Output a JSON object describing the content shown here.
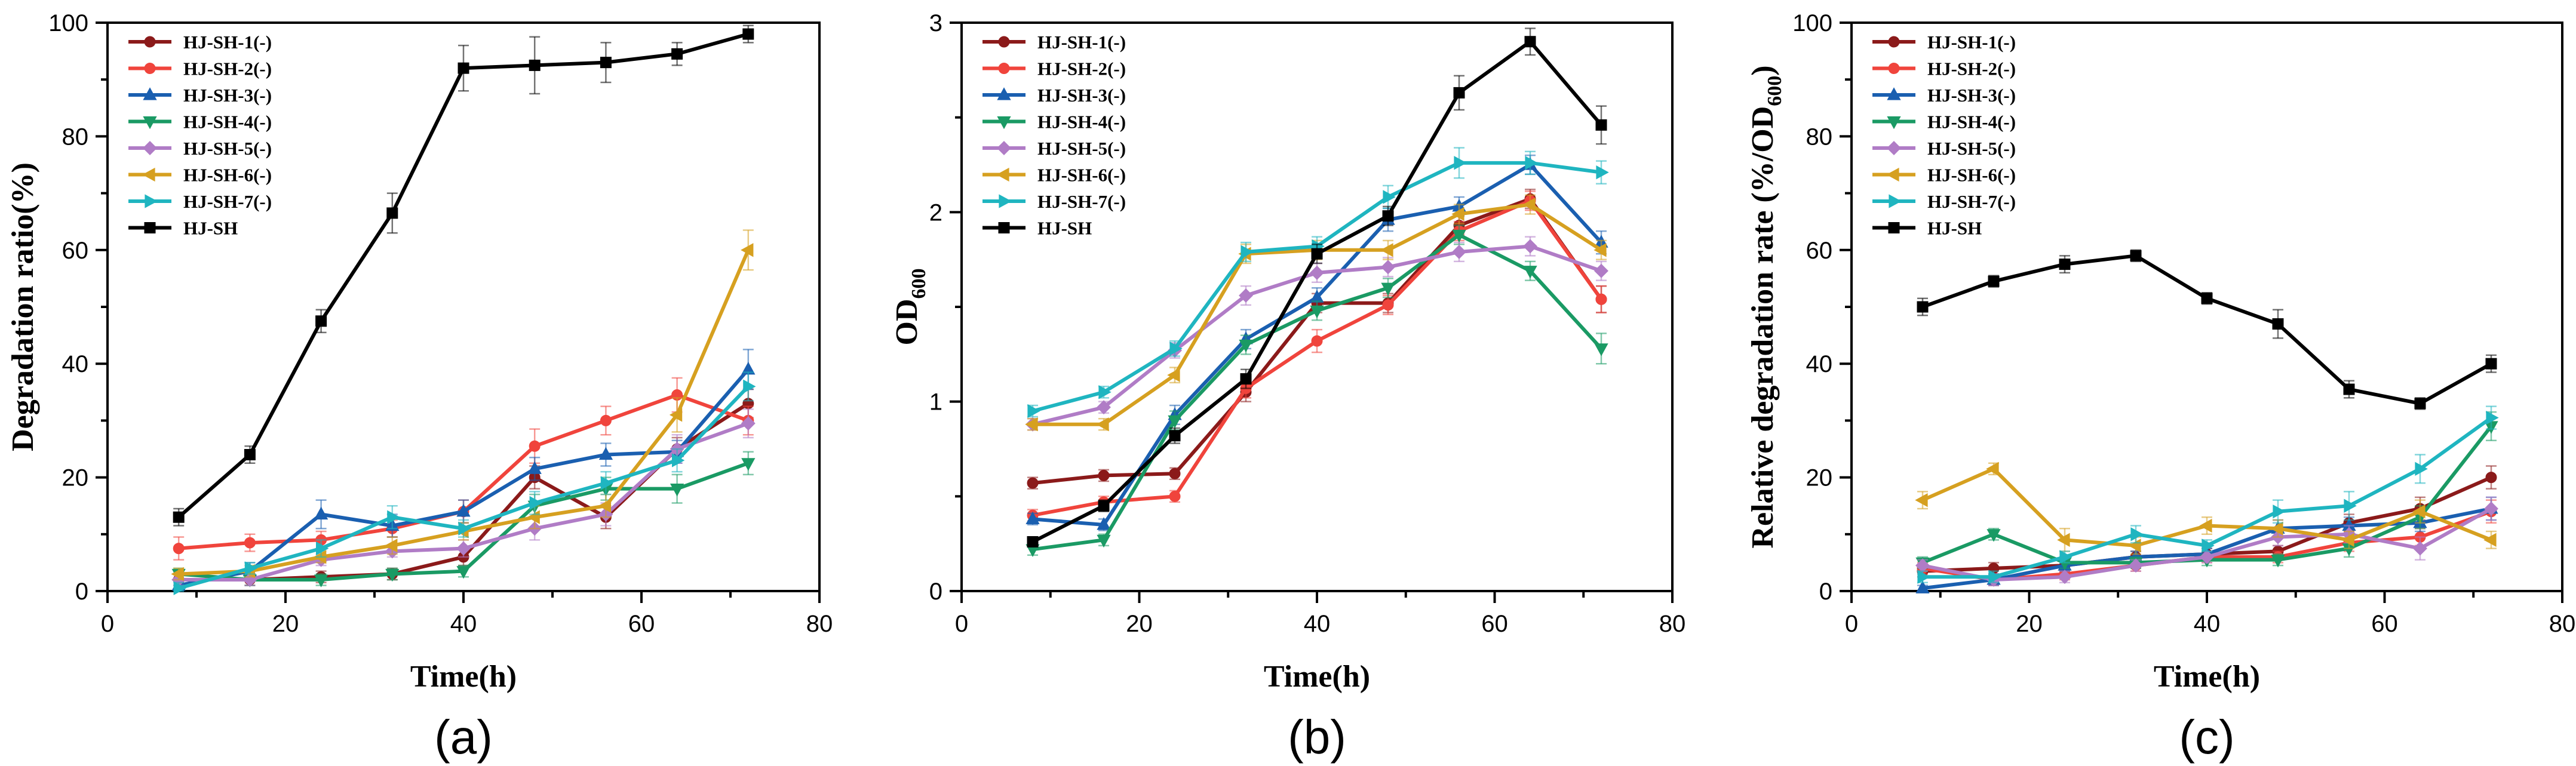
{
  "x_values": [
    8,
    16,
    24,
    32,
    40,
    48,
    56,
    64,
    72
  ],
  "chart_data": [
    {
      "type": "line",
      "panel_label": "(a)",
      "xlabel": "Time(h)",
      "ylabel": "Degradation ratio(%)",
      "xlim": [
        0,
        80
      ],
      "ylim": [
        0,
        100
      ],
      "xticks": [
        0,
        20,
        40,
        60,
        80
      ],
      "yticks": [
        0,
        20,
        40,
        60,
        80,
        100
      ],
      "legend_position": "top-left",
      "series": [
        {
          "name": "HJ-SH-1(-)",
          "color": "#8b1a1a",
          "marker": "circle",
          "values": [
            2,
            2,
            2.5,
            3,
            6,
            20,
            13,
            25,
            33
          ],
          "errors": [
            1,
            1,
            1,
            1,
            1.5,
            2,
            2,
            2,
            2.5
          ]
        },
        {
          "name": "HJ-SH-2(-)",
          "color": "#f0443c",
          "marker": "circle",
          "values": [
            7.5,
            8.5,
            9,
            11,
            14,
            25.5,
            30,
            34.5,
            30
          ],
          "errors": [
            2,
            1.5,
            1.5,
            1.5,
            2,
            3,
            2.5,
            3,
            2.5
          ]
        },
        {
          "name": "HJ-SH-3(-)",
          "color": "#1a5fb0",
          "marker": "triangle-up",
          "values": [
            1,
            3.5,
            13.5,
            11.5,
            14,
            21.5,
            24,
            24.5,
            39
          ],
          "errors": [
            1,
            1.5,
            2.5,
            2,
            2,
            2,
            2,
            2,
            3.5
          ]
        },
        {
          "name": "HJ-SH-4(-)",
          "color": "#1a9a64",
          "marker": "triangle-down",
          "values": [
            3,
            2,
            2,
            3,
            3.5,
            15,
            18,
            18,
            22.5
          ],
          "errors": [
            1,
            1,
            1,
            1,
            1,
            2,
            2,
            2.5,
            2
          ]
        },
        {
          "name": "HJ-SH-5(-)",
          "color": "#b07cc6",
          "marker": "diamond",
          "values": [
            2,
            2,
            5.5,
            7,
            7.5,
            11,
            13.5,
            25,
            29.5
          ],
          "errors": [
            1,
            1,
            1,
            1,
            1.5,
            2,
            2,
            2.5,
            2.5
          ]
        },
        {
          "name": "HJ-SH-6(-)",
          "color": "#d6a020",
          "marker": "triangle-left",
          "values": [
            3,
            3.5,
            6,
            8,
            10.5,
            13,
            15,
            31,
            60
          ],
          "errors": [
            1,
            1,
            1,
            1.5,
            1.5,
            2,
            2,
            3,
            3.5
          ]
        },
        {
          "name": "HJ-SH-7(-)",
          "color": "#1fb5c0",
          "marker": "triangle-right",
          "values": [
            0.5,
            4,
            7.5,
            13,
            11,
            15.5,
            19,
            23,
            36
          ],
          "errors": [
            1,
            1,
            1.5,
            2,
            1.5,
            2,
            2,
            2,
            2.5
          ]
        },
        {
          "name": "HJ-SH",
          "color": "#000000",
          "marker": "square",
          "values": [
            13,
            24,
            47.5,
            66.5,
            92,
            92.5,
            93,
            94.5,
            98
          ],
          "errors": [
            1.5,
            1.5,
            2,
            3.5,
            4,
            5,
            3.5,
            2,
            1.5
          ]
        }
      ]
    },
    {
      "type": "line",
      "panel_label": "(b)",
      "xlabel": "Time(h)",
      "ylabel": "OD",
      "ylabel_subscript": "600",
      "xlim": [
        0,
        80
      ],
      "ylim": [
        0,
        3
      ],
      "xticks": [
        0,
        20,
        40,
        60,
        80
      ],
      "yticks": [
        0,
        1,
        2,
        3
      ],
      "legend_position": "top-left",
      "series": [
        {
          "name": "HJ-SH-1(-)",
          "color": "#8b1a1a",
          "marker": "circle",
          "values": [
            0.57,
            0.61,
            0.62,
            1.05,
            1.52,
            1.52,
            1.93,
            2.07,
            1.54
          ],
          "errors": [
            0.03,
            0.03,
            0.03,
            0.05,
            0.05,
            0.05,
            0.05,
            0.05,
            0.07
          ]
        },
        {
          "name": "HJ-SH-2(-)",
          "color": "#f0443c",
          "marker": "circle",
          "values": [
            0.4,
            0.47,
            0.5,
            1.07,
            1.32,
            1.51,
            1.9,
            2.06,
            1.54
          ],
          "errors": [
            0.03,
            0.03,
            0.03,
            0.05,
            0.06,
            0.05,
            0.05,
            0.05,
            0.07
          ]
        },
        {
          "name": "HJ-SH-3(-)",
          "color": "#1a5fb0",
          "marker": "triangle-up",
          "values": [
            0.38,
            0.35,
            0.93,
            1.33,
            1.55,
            1.96,
            2.03,
            2.25,
            1.84
          ],
          "errors": [
            0.03,
            0.03,
            0.05,
            0.05,
            0.05,
            0.06,
            0.05,
            0.05,
            0.06
          ]
        },
        {
          "name": "HJ-SH-4(-)",
          "color": "#1a9a64",
          "marker": "triangle-down",
          "values": [
            0.22,
            0.27,
            0.9,
            1.3,
            1.48,
            1.6,
            1.88,
            1.69,
            1.28
          ],
          "errors": [
            0.03,
            0.03,
            0.05,
            0.05,
            0.05,
            0.05,
            0.05,
            0.05,
            0.08
          ]
        },
        {
          "name": "HJ-SH-5(-)",
          "color": "#b07cc6",
          "marker": "diamond",
          "values": [
            0.88,
            0.97,
            1.27,
            1.56,
            1.68,
            1.71,
            1.79,
            1.82,
            1.69
          ],
          "errors": [
            0.03,
            0.03,
            0.04,
            0.05,
            0.05,
            0.05,
            0.05,
            0.05,
            0.05
          ]
        },
        {
          "name": "HJ-SH-6(-)",
          "color": "#d6a020",
          "marker": "triangle-left",
          "values": [
            0.88,
            0.88,
            1.14,
            1.78,
            1.8,
            1.8,
            1.99,
            2.04,
            1.8
          ],
          "errors": [
            0.03,
            0.03,
            0.04,
            0.05,
            0.05,
            0.05,
            0.05,
            0.05,
            0.05
          ]
        },
        {
          "name": "HJ-SH-7(-)",
          "color": "#1fb5c0",
          "marker": "triangle-right",
          "values": [
            0.95,
            1.05,
            1.28,
            1.79,
            1.82,
            2.08,
            2.26,
            2.26,
            2.21
          ],
          "errors": [
            0.03,
            0.03,
            0.04,
            0.05,
            0.05,
            0.06,
            0.08,
            0.06,
            0.06
          ]
        },
        {
          "name": "HJ-SH",
          "color": "#000000",
          "marker": "square",
          "values": [
            0.26,
            0.45,
            0.82,
            1.12,
            1.78,
            1.98,
            2.63,
            2.9,
            2.46
          ],
          "errors": [
            0.02,
            0.03,
            0.04,
            0.05,
            0.05,
            0.05,
            0.09,
            0.07,
            0.1
          ]
        }
      ]
    },
    {
      "type": "line",
      "panel_label": "(c)",
      "xlabel": "Time(h)",
      "ylabel": "Relative degradation rate (%/OD",
      "ylabel_subscript": "600",
      "ylabel_suffix": ")",
      "xlim": [
        0,
        80
      ],
      "ylim": [
        0,
        100
      ],
      "xticks": [
        0,
        20,
        40,
        60,
        80
      ],
      "yticks": [
        0,
        20,
        40,
        60,
        80,
        100
      ],
      "legend_position": "top-left",
      "series": [
        {
          "name": "HJ-SH-1(-)",
          "color": "#8b1a1a",
          "marker": "circle",
          "values": [
            3.5,
            4,
            4.5,
            6,
            6.5,
            7,
            12,
            14.5,
            20
          ],
          "errors": [
            1,
            1,
            1,
            1,
            1,
            1,
            1.5,
            2,
            2
          ]
        },
        {
          "name": "HJ-SH-2(-)",
          "color": "#f0443c",
          "marker": "circle",
          "values": [
            4,
            2,
            3,
            4.5,
            6,
            6,
            8.5,
            9.5,
            14
          ],
          "errors": [
            1,
            1,
            1,
            1,
            1,
            1,
            1.5,
            1.5,
            2
          ]
        },
        {
          "name": "HJ-SH-3(-)",
          "color": "#1a5fb0",
          "marker": "triangle-up",
          "values": [
            0.5,
            2,
            4.5,
            6,
            6.5,
            11,
            11.5,
            12,
            14.5
          ],
          "errors": [
            0.5,
            1,
            1,
            1,
            1,
            1.5,
            1.5,
            1.5,
            2
          ]
        },
        {
          "name": "HJ-SH-4(-)",
          "color": "#1a9a64",
          "marker": "triangle-down",
          "values": [
            5,
            10,
            5,
            5,
            5.5,
            5.5,
            7.5,
            13,
            29
          ],
          "errors": [
            1,
            1,
            1,
            1,
            1,
            1,
            1.5,
            2,
            2.5
          ]
        },
        {
          "name": "HJ-SH-5(-)",
          "color": "#b07cc6",
          "marker": "diamond",
          "values": [
            4.5,
            2,
            2.5,
            4.5,
            6,
            9.5,
            10,
            7.5,
            14.5
          ],
          "errors": [
            1,
            1,
            1,
            1,
            1,
            1.5,
            1.5,
            2,
            2
          ]
        },
        {
          "name": "HJ-SH-6(-)",
          "color": "#d6a020",
          "marker": "triangle-left",
          "values": [
            16,
            21.5,
            9,
            8,
            11.5,
            11,
            9,
            14,
            9
          ],
          "errors": [
            1.5,
            1,
            2,
            1.5,
            1.5,
            1.5,
            1.5,
            2,
            1.5
          ]
        },
        {
          "name": "HJ-SH-7(-)",
          "color": "#1fb5c0",
          "marker": "triangle-right",
          "values": [
            2.5,
            2.5,
            6,
            10,
            8,
            14,
            15,
            21.5,
            30.5
          ],
          "errors": [
            1,
            1,
            1,
            1.5,
            1,
            2,
            2.5,
            2.5,
            2
          ]
        },
        {
          "name": "HJ-SH",
          "color": "#000000",
          "marker": "square",
          "values": [
            50,
            54.5,
            57.5,
            59,
            51.5,
            47,
            35.5,
            33,
            40
          ],
          "errors": [
            1.5,
            1,
            1.5,
            1,
            1,
            2.5,
            1.5,
            1,
            1.5
          ]
        }
      ]
    }
  ]
}
